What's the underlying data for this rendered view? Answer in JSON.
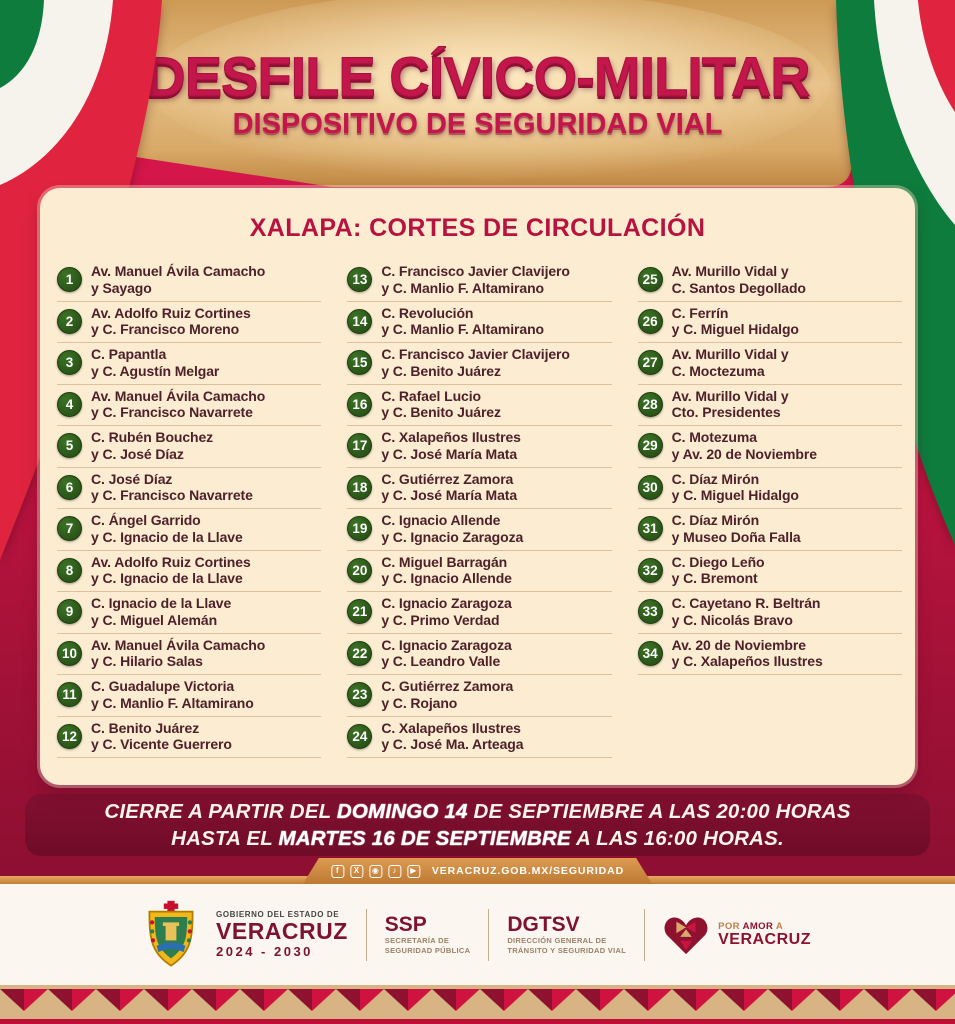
{
  "header": {
    "title": "DESFILE CÍVICO-MILITAR",
    "subtitle": "DISPOSITIVO DE SEGURIDAD VIAL"
  },
  "panel": {
    "heading": "XALAPA: CORTES DE CIRCULACIÓN",
    "columns": [
      [
        {
          "num": "1",
          "street1": "Av. Manuel Ávila Camacho",
          "street2": "y Sayago"
        },
        {
          "num": "2",
          "street1": "Av. Adolfo Ruiz Cortines",
          "street2": "y C. Francisco Moreno"
        },
        {
          "num": "3",
          "street1": "C. Papantla",
          "street2": "y C. Agustín Melgar"
        },
        {
          "num": "4",
          "street1": "Av. Manuel Ávila Camacho",
          "street2": "y C. Francisco Navarrete"
        },
        {
          "num": "5",
          "street1": "C. Rubén Bouchez",
          "street2": "y C. José Díaz"
        },
        {
          "num": "6",
          "street1": "C. José Díaz",
          "street2": "y C. Francisco Navarrete"
        },
        {
          "num": "7",
          "street1": "C. Ángel Garrido",
          "street2": "y C. Ignacio de la Llave"
        },
        {
          "num": "8",
          "street1": "Av. Adolfo Ruiz Cortines",
          "street2": "y C. Ignacio de la Llave"
        },
        {
          "num": "9",
          "street1": "C. Ignacio de la Llave",
          "street2": "y C. Miguel Alemán"
        },
        {
          "num": "10",
          "street1": "Av. Manuel Ávila Camacho",
          "street2": "y C. Hilario Salas"
        },
        {
          "num": "11",
          "street1": "C. Guadalupe Victoria",
          "street2": "y C. Manlio F. Altamirano"
        },
        {
          "num": "12",
          "street1": "C. Benito Juárez",
          "street2": "y C. Vicente Guerrero"
        }
      ],
      [
        {
          "num": "13",
          "street1": "C. Francisco Javier Clavijero",
          "street2": "y C. Manlio F. Altamirano"
        },
        {
          "num": "14",
          "street1": "C. Revolución",
          "street2": "y C. Manlio F. Altamirano"
        },
        {
          "num": "15",
          "street1": "C. Francisco Javier Clavijero",
          "street2": "y C. Benito Juárez"
        },
        {
          "num": "16",
          "street1": "C. Rafael Lucio",
          "street2": "y C. Benito Juárez"
        },
        {
          "num": "17",
          "street1": "C. Xalapeños Ilustres",
          "street2": "y C. José María Mata"
        },
        {
          "num": "18",
          "street1": "C. Gutiérrez Zamora",
          "street2": "y C. José María Mata"
        },
        {
          "num": "19",
          "street1": "C. Ignacio Allende",
          "street2": "y C. Ignacio Zaragoza"
        },
        {
          "num": "20",
          "street1": "C. Miguel Barragán",
          "street2": "y C. Ignacio Allende"
        },
        {
          "num": "21",
          "street1": "C. Ignacio Zaragoza",
          "street2": "y C. Primo Verdad"
        },
        {
          "num": "22",
          "street1": "C. Ignacio Zaragoza",
          "street2": "y C. Leandro Valle"
        },
        {
          "num": "23",
          "street1": "C. Gutiérrez Zamora",
          "street2": "y C. Rojano"
        },
        {
          "num": "24",
          "street1": "C. Xalapeños Ilustres",
          "street2": "y C. José Ma. Arteaga"
        }
      ],
      [
        {
          "num": "25",
          "street1": "Av. Murillo Vidal y",
          "street2": "C. Santos Degollado"
        },
        {
          "num": "26",
          "street1": "C. Ferrín",
          "street2": "y C. Miguel Hidalgo"
        },
        {
          "num": "27",
          "street1": "Av. Murillo Vidal y",
          "street2": "C. Moctezuma"
        },
        {
          "num": "28",
          "street1": "Av. Murillo Vidal y",
          "street2": "Cto. Presidentes"
        },
        {
          "num": "29",
          "street1": "C. Motezuma",
          "street2": "y Av. 20 de Noviembre"
        },
        {
          "num": "30",
          "street1": "C. Díaz Mirón",
          "street2": "y C. Miguel Hidalgo"
        },
        {
          "num": "31",
          "street1": "C. Díaz Mirón",
          "street2": "y Museo Doña Falla"
        },
        {
          "num": "32",
          "street1": "C. Diego Leño",
          "street2": "y C. Bremont"
        },
        {
          "num": "33",
          "street1": "C. Cayetano R. Beltrán",
          "street2": "y C. Nicolás Bravo"
        },
        {
          "num": "34",
          "street1": "Av. 20 de Noviembre",
          "street2": "y C. Xalapeños Ilustres"
        }
      ]
    ]
  },
  "banner": {
    "line1": {
      "pre": "CIERRE A PARTIR DEL ",
      "bold": "DOMINGO 14",
      "post": " DE SEPTIEMBRE A LAS 20:00 HORAS"
    },
    "line2": {
      "pre": "HASTA EL ",
      "bold": "MARTES 16 DE SEPTIEMBRE",
      "post": " A LAS 16:00 HORAS."
    }
  },
  "social": {
    "url": "VERACRUZ.GOB.MX/SEGURIDAD",
    "icons": [
      {
        "name": "facebook-icon",
        "glyph": "f"
      },
      {
        "name": "x-icon",
        "glyph": "X"
      },
      {
        "name": "instagram-icon",
        "glyph": "◉"
      },
      {
        "name": "tiktok-icon",
        "glyph": "♪"
      },
      {
        "name": "youtube-icon",
        "glyph": "▶"
      }
    ]
  },
  "footer": {
    "gov": {
      "top": "GOBIERNO DEL ESTADO DE",
      "name": "VERACRUZ",
      "term": "2024 - 2030"
    },
    "ssp": {
      "abbr": "SSP",
      "line1": "SECRETARÍA DE",
      "line2": "SEGURIDAD PÚBLICA"
    },
    "dgtsv": {
      "abbr": "DGTSV",
      "line1": "DIRECCIÓN GENERAL DE",
      "line2": "TRÁNSITO Y SEGURIDAD VIAL"
    },
    "motto": {
      "pre": "POR ",
      "bold": "AMOR",
      "post": " A",
      "name": "VERACRUZ"
    }
  },
  "colors": {
    "crimson": "#c3164a",
    "maroon": "#7a0e2c",
    "badge_green": "#2d5c1c",
    "tan": "#d9a969",
    "cream": "#fcecd1",
    "flag_green": "#0d7c3c",
    "flag_red": "#e02440"
  }
}
